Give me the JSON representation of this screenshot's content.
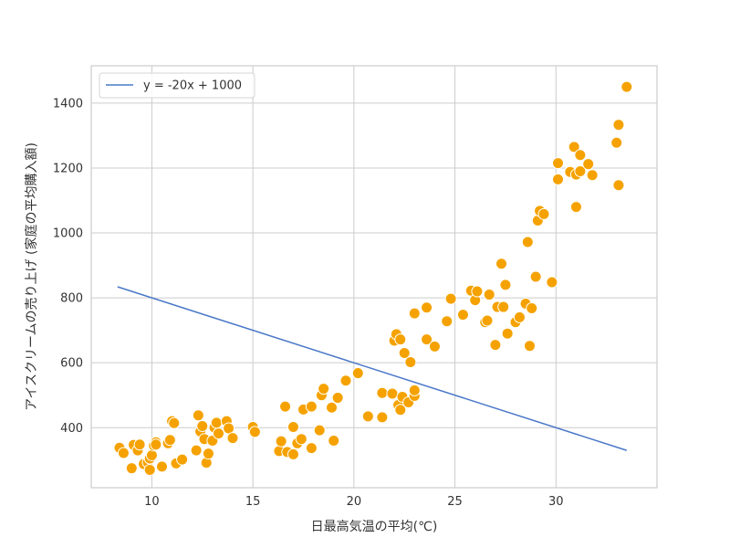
{
  "chart_data": {
    "type": "scatter",
    "xlabel": "日最高気温の平均(℃)",
    "ylabel": "アイスクリームの売り上げ (家庭の平均購入額)",
    "xlim": [
      7,
      35
    ],
    "ylim": [
      215,
      1515
    ],
    "x_ticks": [
      10,
      15,
      20,
      25,
      30
    ],
    "y_ticks": [
      400,
      600,
      800,
      1000,
      1200,
      1400
    ],
    "grid": true,
    "legend_position": "top-left",
    "point_color": "#f5a200",
    "line_color": "#4a78c8",
    "lines": [
      {
        "label": "y = -20x + 1000",
        "slope": -20,
        "intercept": 1000,
        "x_range": [
          8.3,
          33.5
        ]
      }
    ],
    "points": [
      [
        8.4,
        338
      ],
      [
        8.6,
        322
      ],
      [
        9.0,
        275
      ],
      [
        9.1,
        347
      ],
      [
        9.3,
        330
      ],
      [
        9.4,
        348
      ],
      [
        9.6,
        288
      ],
      [
        9.8,
        293
      ],
      [
        9.9,
        270
      ],
      [
        9.9,
        305
      ],
      [
        10.0,
        315
      ],
      [
        10.1,
        345
      ],
      [
        10.2,
        355
      ],
      [
        10.2,
        348
      ],
      [
        10.5,
        280
      ],
      [
        10.8,
        352
      ],
      [
        10.9,
        362
      ],
      [
        11.0,
        420
      ],
      [
        11.1,
        414
      ],
      [
        11.2,
        290
      ],
      [
        11.5,
        302
      ],
      [
        12.2,
        330
      ],
      [
        12.3,
        438
      ],
      [
        12.4,
        388
      ],
      [
        12.5,
        405
      ],
      [
        12.6,
        365
      ],
      [
        12.7,
        292
      ],
      [
        12.8,
        320
      ],
      [
        13.0,
        360
      ],
      [
        13.1,
        400
      ],
      [
        13.2,
        415
      ],
      [
        13.3,
        382
      ],
      [
        13.7,
        420
      ],
      [
        13.8,
        398
      ],
      [
        14.0,
        368
      ],
      [
        15.0,
        402
      ],
      [
        15.1,
        387
      ],
      [
        16.3,
        328
      ],
      [
        16.4,
        358
      ],
      [
        16.6,
        465
      ],
      [
        16.7,
        325
      ],
      [
        17.0,
        318
      ],
      [
        17.0,
        402
      ],
      [
        17.2,
        352
      ],
      [
        17.4,
        365
      ],
      [
        17.5,
        456
      ],
      [
        17.9,
        337
      ],
      [
        17.9,
        465
      ],
      [
        18.3,
        392
      ],
      [
        18.4,
        500
      ],
      [
        18.5,
        520
      ],
      [
        18.9,
        462
      ],
      [
        19.0,
        360
      ],
      [
        19.2,
        492
      ],
      [
        19.6,
        545
      ],
      [
        20.2,
        568
      ],
      [
        20.7,
        435
      ],
      [
        21.4,
        507
      ],
      [
        21.4,
        432
      ],
      [
        21.9,
        505
      ],
      [
        22.0,
        668
      ],
      [
        22.1,
        688
      ],
      [
        22.2,
        470
      ],
      [
        22.3,
        672
      ],
      [
        22.3,
        455
      ],
      [
        22.4,
        495
      ],
      [
        22.5,
        630
      ],
      [
        22.7,
        478
      ],
      [
        22.8,
        602
      ],
      [
        23.0,
        498
      ],
      [
        23.0,
        752
      ],
      [
        23.0,
        515
      ],
      [
        23.6,
        770
      ],
      [
        23.6,
        672
      ],
      [
        24.0,
        650
      ],
      [
        24.6,
        728
      ],
      [
        24.8,
        797
      ],
      [
        25.4,
        748
      ],
      [
        25.8,
        822
      ],
      [
        26.0,
        793
      ],
      [
        26.1,
        820
      ],
      [
        26.5,
        725
      ],
      [
        26.6,
        730
      ],
      [
        26.7,
        810
      ],
      [
        27.0,
        655
      ],
      [
        27.1,
        772
      ],
      [
        27.3,
        905
      ],
      [
        27.4,
        772
      ],
      [
        27.5,
        840
      ],
      [
        27.6,
        690
      ],
      [
        28.0,
        725
      ],
      [
        28.2,
        740
      ],
      [
        28.5,
        782
      ],
      [
        28.6,
        972
      ],
      [
        28.7,
        652
      ],
      [
        28.8,
        768
      ],
      [
        29.0,
        865
      ],
      [
        29.1,
        1038
      ],
      [
        29.2,
        1068
      ],
      [
        29.4,
        1058
      ],
      [
        29.8,
        848
      ],
      [
        30.1,
        1215
      ],
      [
        30.1,
        1165
      ],
      [
        30.7,
        1188
      ],
      [
        30.9,
        1265
      ],
      [
        31.0,
        1180
      ],
      [
        31.0,
        1080
      ],
      [
        31.2,
        1190
      ],
      [
        31.2,
        1240
      ],
      [
        31.6,
        1212
      ],
      [
        31.8,
        1178
      ],
      [
        33.0,
        1278
      ],
      [
        33.1,
        1333
      ],
      [
        33.1,
        1147
      ],
      [
        33.5,
        1450
      ]
    ]
  }
}
